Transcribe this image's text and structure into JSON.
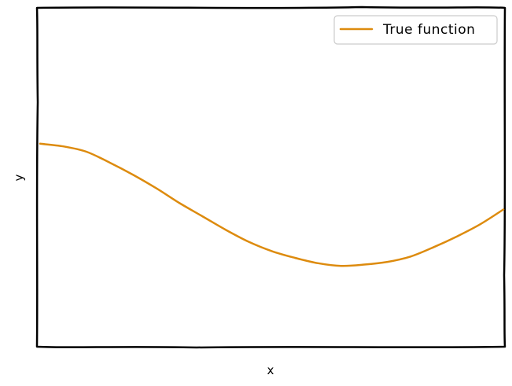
{
  "chart_data": {
    "type": "line",
    "title": "",
    "xlabel": "x",
    "ylabel": "y",
    "xlim": [
      0,
      1
    ],
    "ylim": [
      -1.5,
      1.0
    ],
    "grid": false,
    "xticks": false,
    "yticks": false,
    "legend_position": "top-right",
    "series": [
      {
        "name": "True function",
        "color": "#dd8b0e",
        "x": [
          0.0,
          0.05,
          0.1,
          0.15,
          0.2,
          0.25,
          0.3,
          0.35,
          0.4,
          0.45,
          0.5,
          0.55,
          0.6,
          0.65,
          0.7,
          0.75,
          0.8,
          0.85,
          0.9,
          0.95,
          1.0
        ],
        "y": [
          0.0,
          -0.02,
          -0.06,
          -0.14,
          -0.23,
          -0.33,
          -0.44,
          -0.54,
          -0.64,
          -0.73,
          -0.8,
          -0.85,
          -0.89,
          -0.91,
          -0.9,
          -0.88,
          -0.84,
          -0.77,
          -0.69,
          -0.6,
          -0.49
        ]
      }
    ]
  }
}
